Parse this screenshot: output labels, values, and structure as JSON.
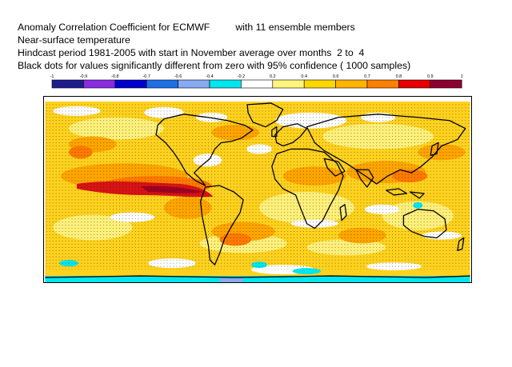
{
  "header": {
    "line1_a": "Anomaly Correlation Coefficient for ECMWF",
    "line1_b": "with 11 ensemble members",
    "line2": "Near-surface temperature",
    "line3": "Hindcast period 1981-2005 with start in November average over months  2 to  4",
    "line4": "Black dots for values significantly different from zero with 95% confidence ( 1000 samples)"
  },
  "colorbar": {
    "ticks": [
      "-1",
      "-0.9",
      "-0.8",
      "-0.7",
      "-0.6",
      "-0.4",
      "-0.2",
      "0.2",
      "0.4",
      "0.6",
      "0.7",
      "0.8",
      "0.9",
      "1"
    ],
    "colors": [
      "#1c1c8c",
      "#8a2be2",
      "#0000cd",
      "#1e6ee6",
      "#87aaf0",
      "#00e5ee",
      "#ffffff",
      "#fff57a",
      "#ffd700",
      "#ffb400",
      "#ff7f00",
      "#e60000",
      "#8b0030"
    ]
  },
  "map": {
    "type": "global anomaly correlation map",
    "projection": "equirectangular",
    "significance_marker": "black dots"
  }
}
